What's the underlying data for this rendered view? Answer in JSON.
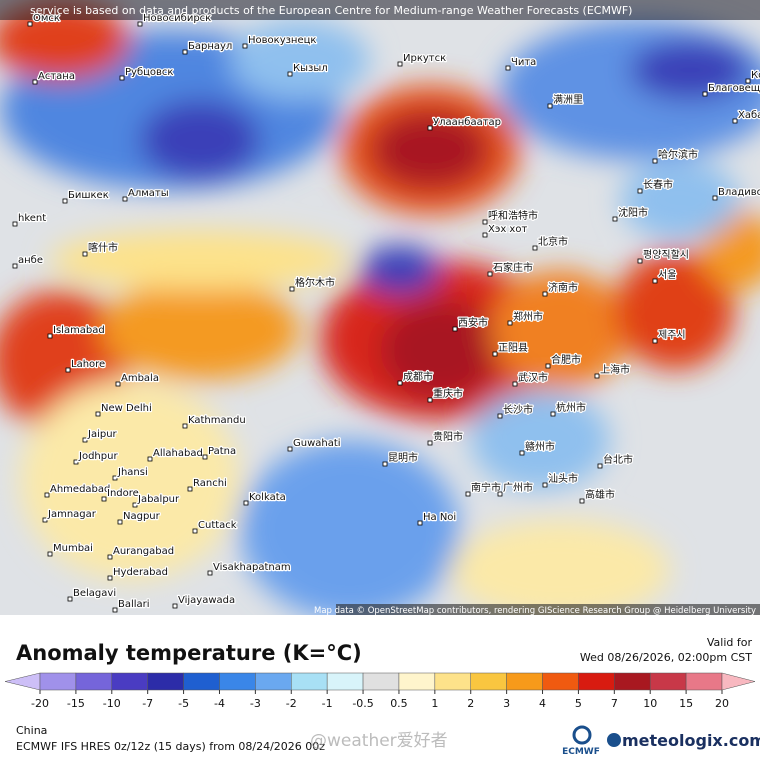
{
  "header": "service is based on data and products of the European Centre for Medium-range Weather Forecasts (ECMWF)",
  "attribution": "Map data © OpenStreetMap contributors, rendering GIScience Research Group @ Heidelberg University",
  "cities": [
    "Омск",
    "Новосибирск",
    "Барнаул",
    "Новокузнецк",
    "Рубцовск",
    "Астана",
    "Кызыл",
    "Иркутск",
    "Чита",
    "Улаанбаатар",
    "满洲里",
    "Благовещенск",
    "Хабаровск",
    "Комс",
    "Бишкек",
    "Алматы",
    "hkent",
    "анбе",
    "喀什市",
    "格尔木市",
    "呼和浩特市",
    "Хэх хот",
    "北京市",
    "石家庄市",
    "济南市",
    "西安市",
    "郑州市",
    "正阳县",
    "合肥市",
    "上海市",
    "武汉市",
    "成都市",
    "重庆市",
    "长沙市",
    "杭州市",
    "贵阳市",
    "昆明市",
    "赣州市",
    "台北市",
    "汕头市",
    "南宁市",
    "广州市",
    "高雄市",
    "哈尔滨市",
    "长春市",
    "沈阳市",
    "Владивосток",
    "평양직할시",
    "서울",
    "제주시",
    "Islamabad",
    "Lahore",
    "Ambala",
    "New Delhi",
    "Kathmandu",
    "Jaipur",
    "Jodhpur",
    "Allahabad",
    "Patna",
    "Guwahati",
    "Jhansi",
    "Ranchi",
    "Ahmedabad",
    "Indore",
    "Jabalpur",
    "Kolkata",
    "Jamnagar",
    "Nagpur",
    "Cuttack",
    "Mumbai",
    "Aurangabad",
    "Hyderabad",
    "Visakhapatnam",
    "Belagavi",
    "Ballari",
    "Vijayawada",
    "Ha Noi"
  ],
  "legend": {
    "title": "Anomaly temperature (K=°C)",
    "valid_label": "Valid for",
    "valid_time": "Wed 08/26/2026, 02:00pm CST",
    "ticks": [
      -20,
      -15,
      -10,
      -7,
      -5,
      -4,
      -3,
      -2,
      -1,
      -0.5,
      0.5,
      1,
      2,
      3,
      4,
      5,
      7,
      10,
      15,
      20
    ],
    "colors": [
      "#cdbff7",
      "#a091ea",
      "#7565da",
      "#4a3cc2",
      "#2c2ca8",
      "#1f5fd0",
      "#3a86e8",
      "#6aa8f0",
      "#a8e0f5",
      "#d8f4fa",
      "#e0e0e0",
      "#fff5cc",
      "#fde28a",
      "#f9c640",
      "#f79a1a",
      "#f05a10",
      "#d81b10",
      "#a81820",
      "#c83848",
      "#e87888",
      "#f8b8c0"
    ]
  },
  "footer": {
    "region": "China",
    "model": "ECMWF IFS HRES 0z/12z (15 days) from 08/24/2026 00z",
    "watermark": "@weather爱好者",
    "ecmwf": "ECMWF",
    "brand": "meteologix.com"
  }
}
